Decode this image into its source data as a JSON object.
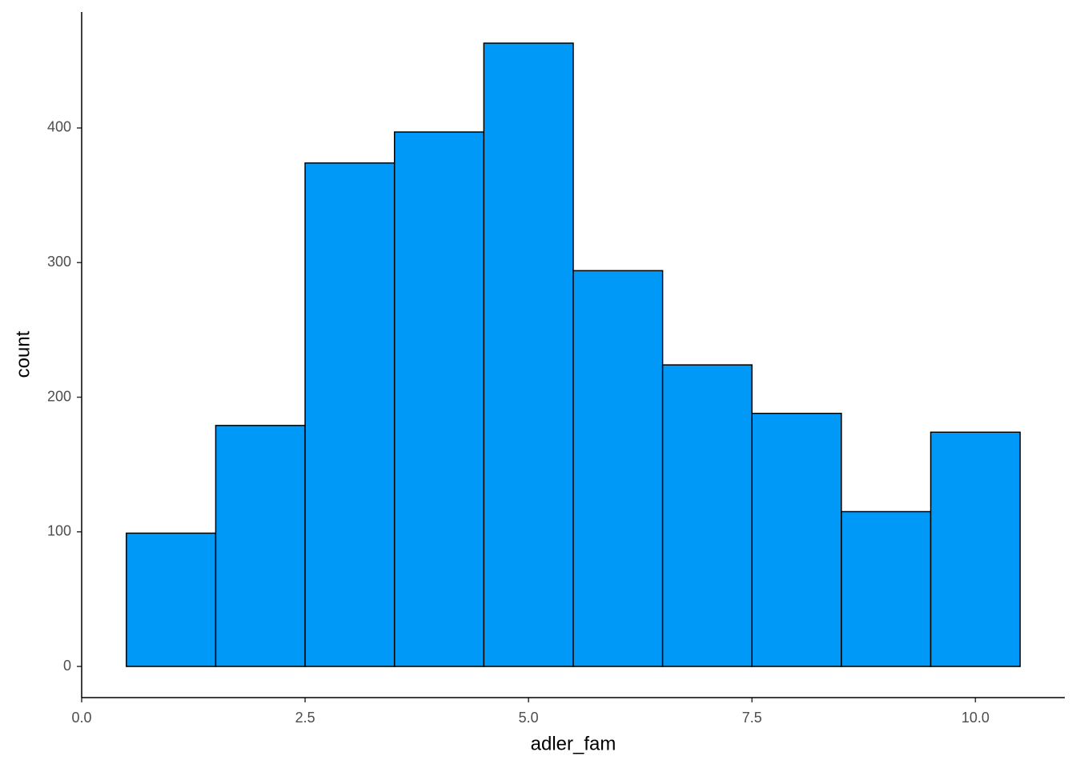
{
  "chart_data": {
    "type": "histogram",
    "x_label": "adler_fam",
    "y_label": "count",
    "bins": [
      0.5,
      1.5,
      2.5,
      3.5,
      4.5,
      5.5,
      6.5,
      7.5,
      8.5,
      9.5,
      10.5
    ],
    "counts": [
      99,
      179,
      374,
      397,
      463,
      294,
      224,
      188,
      115,
      174
    ],
    "color": "#0099f8",
    "edge_color": "#000000",
    "xlim": [
      0,
      11
    ],
    "ylim": [
      -23.15,
      486.15
    ],
    "xticks": [
      {
        "value": 0,
        "label": "0.0"
      },
      2.5,
      {
        "value": 5,
        "label": "5.0"
      },
      7.5,
      {
        "value": 10,
        "label": "10.0"
      }
    ],
    "yticks": [
      0,
      100,
      200,
      300,
      400
    ],
    "grid": false
  }
}
